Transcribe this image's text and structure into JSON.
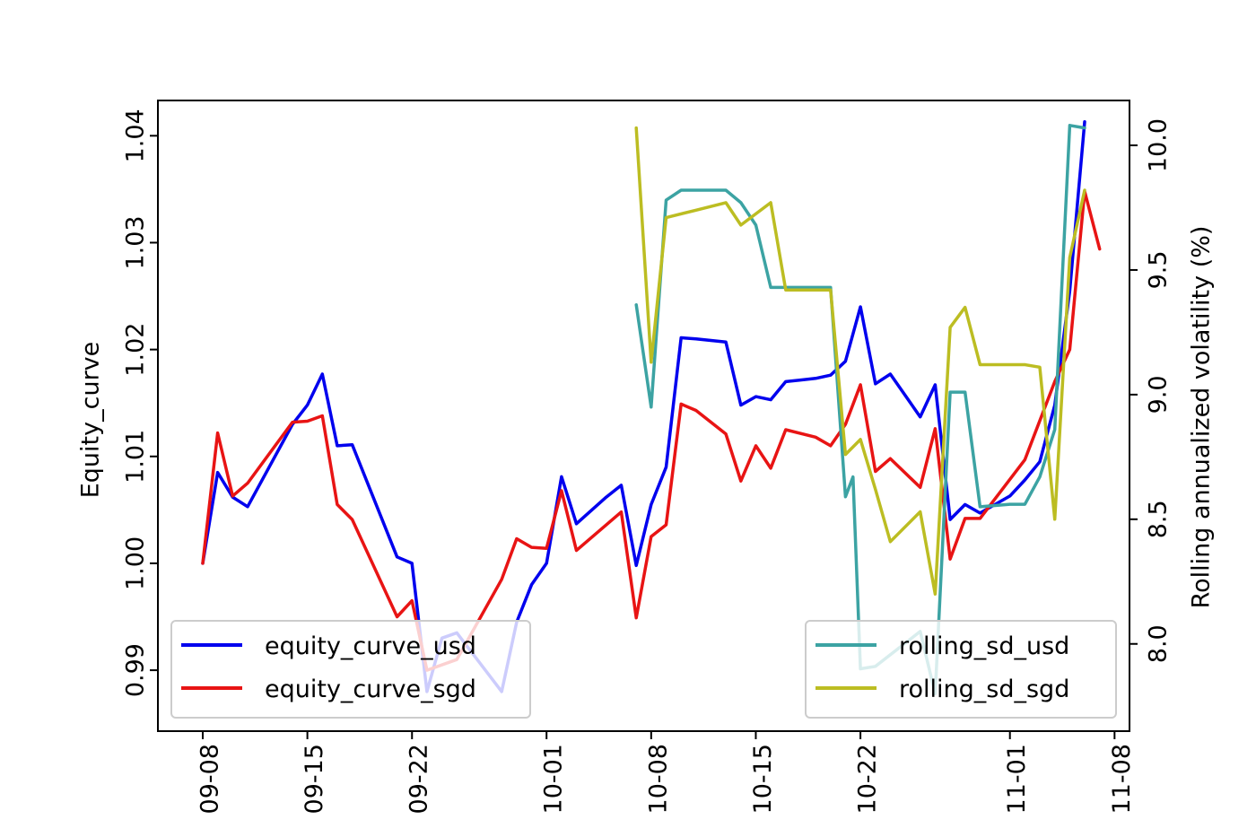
{
  "chart_data": {
    "type": "line",
    "title": "",
    "xlabel": "",
    "ylabel": "Equity_curve",
    "y2label": "Rolling annualized volatility (%)",
    "grid": false,
    "x_tick_labels": [
      "09-08",
      "09-15",
      "09-22",
      "10-01",
      "10-08",
      "10-15",
      "10-22",
      "11-01",
      "11-08"
    ],
    "x_tick_dates": [
      "2015-09-08",
      "2015-09-15",
      "2015-09-22",
      "2015-10-01",
      "2015-10-08",
      "2015-10-15",
      "2015-10-22",
      "2015-11-01",
      "2015-11-08"
    ],
    "xlim": [
      "2015-09-05",
      "2015-11-09"
    ],
    "ylim": [
      0.9843,
      1.0433
    ],
    "y_ticks": [
      0.99,
      1.0,
      1.01,
      1.02,
      1.03,
      1.04
    ],
    "y_tick_labels": [
      "0.99",
      "1.00",
      "1.01",
      "1.02",
      "1.03",
      "1.04"
    ],
    "y2lim": [
      7.65,
      10.18
    ],
    "y2_ticks": [
      8.0,
      8.5,
      9.0,
      9.5,
      10.0
    ],
    "y2_tick_labels": [
      "8.0",
      "8.5",
      "9.0",
      "9.5",
      "10.0"
    ],
    "legend_left": {
      "placement": "lower-left",
      "entries": [
        "equity_curve_usd",
        "equity_curve_sgd"
      ]
    },
    "legend_right": {
      "placement": "lower-right",
      "entries": [
        "rolling_sd_usd",
        "rolling_sd_sgd"
      ]
    },
    "series": [
      {
        "name": "equity_curve_usd",
        "axis": "left",
        "color": "#0000ee",
        "points": [
          [
            "2015-09-08",
            1.0
          ],
          [
            "2015-09-09",
            1.0085
          ],
          [
            "2015-09-10",
            1.0062
          ],
          [
            "2015-09-11",
            1.0053
          ],
          [
            "2015-09-14",
            1.013
          ],
          [
            "2015-09-15",
            1.0148
          ],
          [
            "2015-09-16",
            1.0177
          ],
          [
            "2015-09-17",
            1.011
          ],
          [
            "2015-09-18",
            1.0111
          ],
          [
            "2015-09-21",
            1.0006
          ],
          [
            "2015-09-22",
            1.0
          ],
          [
            "2015-09-23",
            0.988
          ],
          [
            "2015-09-24",
            0.993
          ],
          [
            "2015-09-25",
            0.9935
          ],
          [
            "2015-09-28",
            0.988
          ],
          [
            "2015-09-29",
            0.9945
          ],
          [
            "2015-09-30",
            0.998
          ],
          [
            "2015-10-01",
            1.0
          ],
          [
            "2015-10-02",
            1.0081
          ],
          [
            "2015-10-03",
            1.0037
          ],
          [
            "2015-10-05",
            1.0062
          ],
          [
            "2015-10-06",
            1.0073
          ],
          [
            "2015-10-07",
            0.9998
          ],
          [
            "2015-10-08",
            1.0055
          ],
          [
            "2015-10-09",
            1.009
          ],
          [
            "2015-10-10",
            1.0211
          ],
          [
            "2015-10-11",
            1.021
          ],
          [
            "2015-10-13",
            1.0207
          ],
          [
            "2015-10-14",
            1.0148
          ],
          [
            "2015-10-15",
            1.0156
          ],
          [
            "2015-10-16",
            1.0153
          ],
          [
            "2015-10-17",
            1.017
          ],
          [
            "2015-10-19",
            1.0173
          ],
          [
            "2015-10-20",
            1.0176
          ],
          [
            "2015-10-21",
            1.0189
          ],
          [
            "2015-10-22",
            1.024
          ],
          [
            "2015-10-23",
            1.0168
          ],
          [
            "2015-10-24",
            1.0177
          ],
          [
            "2015-10-26",
            1.0137
          ],
          [
            "2015-10-27",
            1.0167
          ],
          [
            "2015-10-28",
            1.0041
          ],
          [
            "2015-10-29",
            1.0055
          ],
          [
            "2015-10-30",
            1.0047
          ],
          [
            "2015-11-01",
            1.0063
          ],
          [
            "2015-11-02",
            1.0078
          ],
          [
            "2015-11-03",
            1.0095
          ],
          [
            "2015-11-04",
            1.0148
          ],
          [
            "2015-11-05",
            1.0255
          ],
          [
            "2015-11-06",
            1.0413
          ]
        ]
      },
      {
        "name": "equity_curve_sgd",
        "axis": "left",
        "color": "#e81414",
        "points": [
          [
            "2015-09-08",
            1.0
          ],
          [
            "2015-09-09",
            1.0122
          ],
          [
            "2015-09-10",
            1.0063
          ],
          [
            "2015-09-11",
            1.0075
          ],
          [
            "2015-09-14",
            1.0132
          ],
          [
            "2015-09-15",
            1.0133
          ],
          [
            "2015-09-16",
            1.0138
          ],
          [
            "2015-09-17",
            1.0055
          ],
          [
            "2015-09-18",
            1.0041
          ],
          [
            "2015-09-21",
            0.995
          ],
          [
            "2015-09-22",
            0.9965
          ],
          [
            "2015-09-23",
            0.99
          ],
          [
            "2015-09-25",
            0.991
          ],
          [
            "2015-09-28",
            0.9985
          ],
          [
            "2015-09-29",
            1.0023
          ],
          [
            "2015-09-30",
            1.0015
          ],
          [
            "2015-10-01",
            1.0014
          ],
          [
            "2015-10-02",
            1.0068
          ],
          [
            "2015-10-03",
            1.0012
          ],
          [
            "2015-10-06",
            1.0048
          ],
          [
            "2015-10-07",
            0.9949
          ],
          [
            "2015-10-08",
            1.0025
          ],
          [
            "2015-10-09",
            1.0036
          ],
          [
            "2015-10-10",
            1.0149
          ],
          [
            "2015-10-11",
            1.0143
          ],
          [
            "2015-10-13",
            1.0121
          ],
          [
            "2015-10-14",
            1.0077
          ],
          [
            "2015-10-15",
            1.011
          ],
          [
            "2015-10-16",
            1.0089
          ],
          [
            "2015-10-17",
            1.0125
          ],
          [
            "2015-10-19",
            1.0118
          ],
          [
            "2015-10-20",
            1.011
          ],
          [
            "2015-10-21",
            1.013
          ],
          [
            "2015-10-22",
            1.0167
          ],
          [
            "2015-10-23",
            1.0086
          ],
          [
            "2015-10-24",
            1.0098
          ],
          [
            "2015-10-26",
            1.0071
          ],
          [
            "2015-10-27",
            1.0126
          ],
          [
            "2015-10-28",
            1.0004
          ],
          [
            "2015-10-29",
            1.0042
          ],
          [
            "2015-10-30",
            1.0042
          ],
          [
            "2015-11-02",
            1.0097
          ],
          [
            "2015-11-04",
            1.017
          ],
          [
            "2015-11-05",
            1.02
          ],
          [
            "2015-11-06",
            1.0348
          ],
          [
            "2015-11-07",
            1.0294
          ]
        ]
      },
      {
        "name": "rolling_sd_usd",
        "axis": "right",
        "color": "#3ca3a3",
        "points": [
          [
            "2015-10-07",
            9.36
          ],
          [
            "2015-10-08",
            8.95
          ],
          [
            "2015-10-09",
            9.78
          ],
          [
            "2015-10-10",
            9.82
          ],
          [
            "2015-10-11",
            9.82
          ],
          [
            "2015-10-13",
            9.82
          ],
          [
            "2015-10-14",
            9.77
          ],
          [
            "2015-10-15",
            9.68
          ],
          [
            "2015-10-16",
            9.43
          ],
          [
            "2015-10-19",
            9.43
          ],
          [
            "2015-10-20",
            9.43
          ],
          [
            "2015-10-21",
            8.59
          ],
          [
            "2015-10-21T12:00",
            8.67
          ],
          [
            "2015-10-22",
            7.9
          ],
          [
            "2015-10-23",
            7.91
          ],
          [
            "2015-10-26",
            8.05
          ],
          [
            "2015-10-27",
            7.8
          ],
          [
            "2015-10-28",
            9.01
          ],
          [
            "2015-10-29",
            9.01
          ],
          [
            "2015-10-30",
            8.55
          ],
          [
            "2015-11-01",
            8.56
          ],
          [
            "2015-11-02",
            8.56
          ],
          [
            "2015-11-03",
            8.67
          ],
          [
            "2015-11-04",
            8.86
          ],
          [
            "2015-11-05",
            10.08
          ],
          [
            "2015-11-06",
            10.07
          ]
        ]
      },
      {
        "name": "rolling_sd_sgd",
        "axis": "right",
        "color": "#bcbd22",
        "points": [
          [
            "2015-10-07",
            10.07
          ],
          [
            "2015-10-08",
            9.13
          ],
          [
            "2015-10-09",
            9.71
          ],
          [
            "2015-10-11",
            9.74
          ],
          [
            "2015-10-13",
            9.77
          ],
          [
            "2015-10-14",
            9.68
          ],
          [
            "2015-10-16",
            9.77
          ],
          [
            "2015-10-17",
            9.42
          ],
          [
            "2015-10-19",
            9.42
          ],
          [
            "2015-10-20",
            9.42
          ],
          [
            "2015-10-21",
            8.76
          ],
          [
            "2015-10-22",
            8.82
          ],
          [
            "2015-10-23",
            8.62
          ],
          [
            "2015-10-24",
            8.41
          ],
          [
            "2015-10-26",
            8.53
          ],
          [
            "2015-10-27",
            8.2
          ],
          [
            "2015-10-28",
            9.27
          ],
          [
            "2015-10-29",
            9.35
          ],
          [
            "2015-10-30",
            9.12
          ],
          [
            "2015-11-01",
            9.12
          ],
          [
            "2015-11-02",
            9.12
          ],
          [
            "2015-11-03",
            9.11
          ],
          [
            "2015-11-04",
            8.5
          ],
          [
            "2015-11-05",
            9.55
          ],
          [
            "2015-11-06",
            9.82
          ]
        ]
      }
    ]
  }
}
